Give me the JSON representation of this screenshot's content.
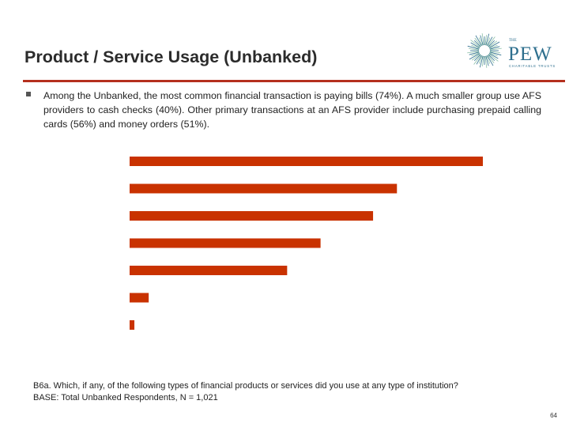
{
  "slide": {
    "title": "Product / Service Usage (Unbanked)",
    "bullet": "Among the Unbanked, the most common financial transaction is paying bills (74%).  A much smaller group use AFS providers to cash checks (40%).  Other primary transactions at an AFS provider include purchasing prepaid calling cards (56%) and money orders (51%).",
    "footnote_question": "B6a. Which, if any, of the following types of financial products or services did you use at any type of institution?",
    "footnote_base": "BASE: Total Unbanked Respondents, N = 1,021",
    "page_number": "64"
  },
  "logo": {
    "the_text": "THE",
    "name_text": "PEW",
    "subtitle_text": "CHARITABLE TRUSTS"
  },
  "colors": {
    "bar": "#c93200",
    "title_rule": "#b5301e",
    "logo_blue": "#2e6f8e",
    "logo_green": "#8cc0a8"
  },
  "chart_data": {
    "type": "bar",
    "orientation": "horizontal",
    "categories": [
      "",
      "",
      "",
      "",
      "",
      "",
      ""
    ],
    "values": [
      74,
      56,
      51,
      40,
      33,
      4,
      1
    ],
    "xlim": [
      0,
      80
    ],
    "grid": false,
    "legend": "none"
  }
}
